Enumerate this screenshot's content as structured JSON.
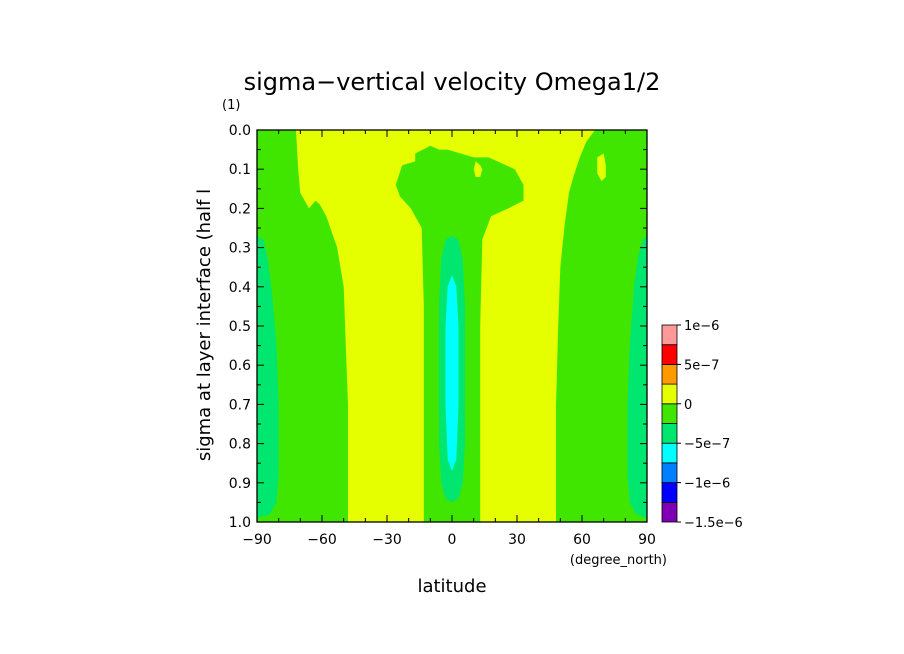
{
  "chart_data": {
    "type": "heatmap",
    "title": "sigma−vertical velocity Omega1/2",
    "units_label": "(1)",
    "xlabel": "latitude",
    "ylabel": "sigma at layer interface (half l",
    "x_unit_label": "(degree_north)",
    "xlim": [
      -90,
      90
    ],
    "ylim": [
      0.0,
      1.0
    ],
    "y_inverted": true,
    "x_ticks": [
      "−90",
      "−60",
      "−30",
      "0",
      "30",
      "60",
      "90"
    ],
    "x_tick_values": [
      -90,
      -60,
      -30,
      0,
      30,
      60,
      90
    ],
    "y_ticks": [
      "0.0",
      "0.1",
      "0.2",
      "0.3",
      "0.4",
      "0.5",
      "0.6",
      "0.7",
      "0.8",
      "0.9",
      "1.0"
    ],
    "y_tick_values": [
      0.0,
      0.1,
      0.2,
      0.3,
      0.4,
      0.5,
      0.6,
      0.7,
      0.8,
      0.9,
      1.0
    ],
    "colorbar": {
      "labels": [
        "1e−6",
        "5e−7",
        "0",
        "−5e−7",
        "−1e−6",
        "−1.5e−6"
      ],
      "levels": [
        -1.5e-06,
        -1.25e-06,
        -1e-06,
        -7.5e-07,
        -5e-07,
        -2.5e-07,
        0,
        2.5e-07,
        5e-07,
        7.5e-07,
        1e-06
      ],
      "colors": [
        "#7f00b4",
        "#0000ff",
        "#0080ff",
        "#00ffff",
        "#00e66e",
        "#40e600",
        "#e6ff00",
        "#ff9900",
        "#ff0000",
        "#ff9999"
      ]
    },
    "regions": [
      {
        "name": "mid-latitude band (0 to 2.5e-7)",
        "color": "#e6ff00",
        "lat_range": [
          -90,
          90
        ],
        "sigma_range": [
          0,
          1
        ]
      },
      {
        "name": "south polar band (-2.5e-7 to 0)",
        "color": "#40e600",
        "lat_range": [
          -90,
          -45
        ],
        "sigma_range": [
          0,
          1
        ]
      },
      {
        "name": "south polar core (-5e-7 to -2.5e-7)",
        "color": "#00e66e",
        "lat_range": [
          -90,
          -78
        ],
        "sigma_range": [
          0.27,
          0.98
        ]
      },
      {
        "name": "north polar band (-2.5e-7 to 0)",
        "color": "#40e600",
        "lat_range": [
          50,
          90
        ],
        "sigma_range": [
          0,
          1
        ]
      },
      {
        "name": "north polar core (-5e-7 to -2.5e-7)",
        "color": "#00e66e",
        "lat_range": [
          79,
          90
        ],
        "sigma_range": [
          0.27,
          0.98
        ]
      },
      {
        "name": "equatorial band (-2.5e-7 to 0)",
        "color": "#40e600",
        "lat_range": [
          -17,
          17
        ],
        "sigma_range": [
          0,
          1
        ]
      },
      {
        "name": "equatorial core (-5e-7 to -2.5e-7)",
        "color": "#00e66e",
        "lat_range": [
          -6,
          6
        ],
        "sigma_range": [
          0.27,
          0.95
        ]
      },
      {
        "name": "equatorial minimum (-7.5e-7 to -5e-7)",
        "color": "#00ffff",
        "lat_range": [
          -3,
          3
        ],
        "sigma_range": [
          0.37,
          0.87
        ]
      }
    ]
  }
}
